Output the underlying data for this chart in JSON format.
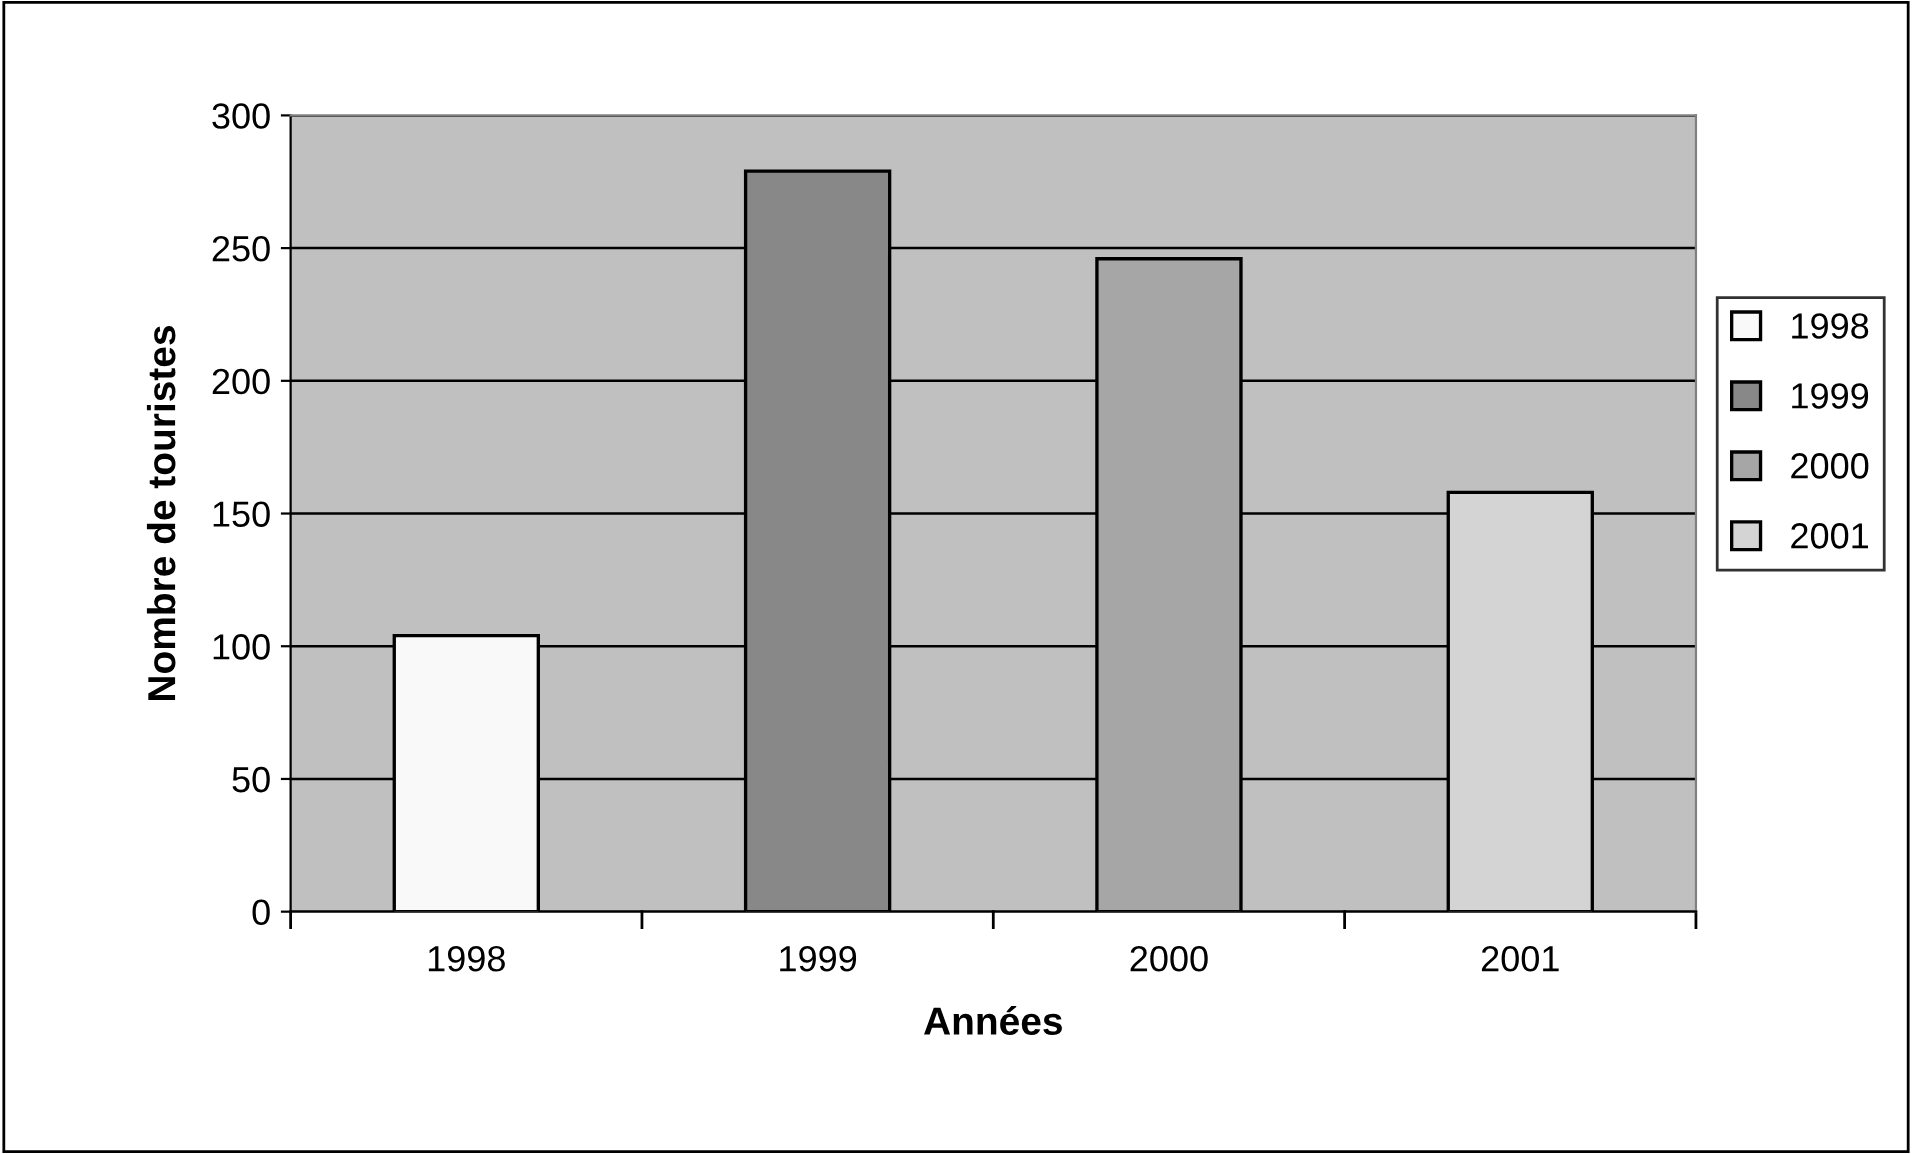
{
  "chart_data": {
    "type": "bar",
    "xlabel": "Années",
    "ylabel": "Nombre de touristes",
    "categories": [
      "1998",
      "1999",
      "2000",
      "2001"
    ],
    "series": [
      {
        "name": "1998",
        "color": "#f9f9f9",
        "values": [
          104,
          null,
          null,
          null
        ]
      },
      {
        "name": "1999",
        "color": "#888888",
        "values": [
          null,
          279,
          null,
          null
        ]
      },
      {
        "name": "2000",
        "color": "#a6a6a6",
        "values": [
          null,
          null,
          246,
          null
        ]
      },
      {
        "name": "2001",
        "color": "#d4d4d4",
        "values": [
          null,
          null,
          null,
          158
        ]
      }
    ],
    "ylim": [
      0,
      300
    ],
    "yticks": [
      0,
      50,
      100,
      150,
      200,
      250,
      300
    ],
    "grid": "y",
    "legend": "right"
  }
}
